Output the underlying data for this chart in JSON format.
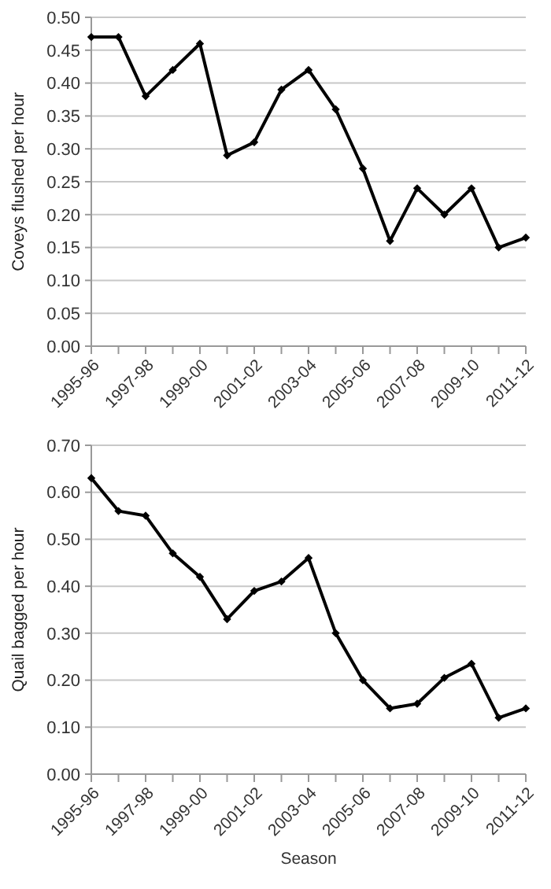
{
  "chart_data": [
    {
      "type": "line",
      "ylabel": "Coveys flushed per hour",
      "categories": [
        "1995-96",
        null,
        "1997-98",
        null,
        "1999-00",
        null,
        "2001-02",
        null,
        "2003-04",
        null,
        "2005-06",
        null,
        "2007-08",
        null,
        "2009-10",
        null,
        "2011-12"
      ],
      "series": [
        {
          "color": "#000000",
          "values": [
            0.47,
            0.47,
            0.38,
            0.42,
            0.46,
            0.29,
            0.31,
            0.39,
            0.42,
            0.36,
            0.27,
            0.16,
            0.24,
            0.2,
            0.24,
            0.15,
            0.165
          ]
        }
      ],
      "ylim": [
        0,
        0.5
      ],
      "yticks": [
        {
          "value": 0,
          "label": "0.00"
        },
        {
          "value": 0.05,
          "label": "0.05"
        },
        {
          "value": 0.1,
          "label": "0.10"
        },
        {
          "value": 0.15,
          "label": "0.15"
        },
        {
          "value": 0.2,
          "label": "0.20"
        },
        {
          "value": 0.25,
          "label": "0.25"
        },
        {
          "value": 0.3,
          "label": "0.30"
        },
        {
          "value": 0.35,
          "label": "0.35"
        },
        {
          "value": 0.4,
          "label": "0.40"
        },
        {
          "value": 0.45,
          "label": "0.45"
        },
        {
          "value": 0.5,
          "label": "0.50"
        }
      ],
      "grid": "y",
      "marker": "diamond",
      "line_style": "solid"
    },
    {
      "type": "line",
      "xlabel": "Season",
      "ylabel": "Quail bagged per hour",
      "categories": [
        "1995-96",
        null,
        "1997-98",
        null,
        "1999-00",
        null,
        "2001-02",
        null,
        "2003-04",
        null,
        "2005-06",
        null,
        "2007-08",
        null,
        "2009-10",
        null,
        "2011-12"
      ],
      "series": [
        {
          "color": "#000000",
          "values": [
            0.63,
            0.56,
            0.55,
            0.47,
            0.42,
            0.33,
            0.39,
            0.41,
            0.46,
            0.3,
            0.2,
            0.14,
            0.15,
            0.205,
            0.235,
            0.12,
            0.14
          ]
        }
      ],
      "ylim": [
        0,
        0.7
      ],
      "yticks": [
        {
          "value": 0,
          "label": "0.00"
        },
        {
          "value": 0.1,
          "label": "0.10"
        },
        {
          "value": 0.2,
          "label": "0.20"
        },
        {
          "value": 0.3,
          "label": "0.30"
        },
        {
          "value": 0.4,
          "label": "0.40"
        },
        {
          "value": 0.5,
          "label": "0.50"
        },
        {
          "value": 0.6,
          "label": "0.60"
        },
        {
          "value": 0.7,
          "label": "0.70"
        }
      ],
      "grid": "y",
      "marker": "diamond",
      "line_style": "solid"
    }
  ]
}
